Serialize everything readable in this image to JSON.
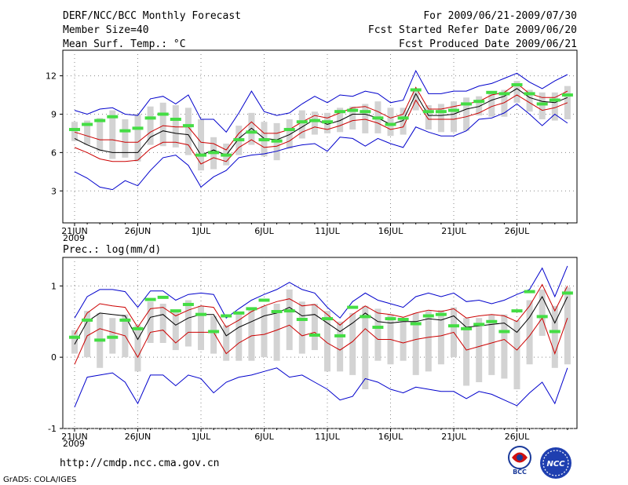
{
  "header": {
    "left": [
      "DERF/NCC/BCC Monthly Forecast",
      "Member Size=40",
      "Mean Surf. Temp.: °C"
    ],
    "right": [
      "For 2009/06/21-2009/07/30",
      "Fcst Started Refer Date 2009/06/20",
      "Fcst Produced Date 2009/06/21"
    ]
  },
  "footer": {
    "url": "http://cmdp.ncc.cma.gov.cn",
    "credit": "GrADS: COLA/IGES",
    "logo_left": "BCC",
    "logo_right": "NCC"
  },
  "colors": {
    "envelope": "#0000cc",
    "spread": "#cc0000",
    "mean": "#000000",
    "box": "#d3d3d3",
    "marker": "#44dd44",
    "grid": "#888888"
  },
  "chart_data": [
    {
      "type": "ensemble",
      "title": "Mean Surf. Temp.: °C",
      "ylim": [
        0.5,
        14
      ],
      "yticks": [
        3,
        6,
        9,
        12
      ],
      "xtick_labels": [
        "21JUN",
        "26JUN",
        "1JUL",
        "6JUL",
        "11JUL",
        "16JUL",
        "21JUL",
        "26JUL"
      ],
      "xtick_year": "2009",
      "days": 40,
      "max": [
        9.3,
        9.0,
        9.4,
        9.5,
        9.0,
        8.9,
        10.2,
        10.4,
        9.8,
        10.5,
        8.6,
        8.6,
        7.6,
        9.1,
        10.8,
        9.2,
        8.9,
        9.1,
        9.8,
        10.4,
        9.9,
        10.5,
        10.4,
        10.8,
        10.6,
        9.9,
        10.1,
        12.4,
        10.6,
        10.6,
        10.8,
        10.8,
        11.2,
        11.4,
        11.8,
        12.2,
        11.5,
        11.0,
        11.6,
        12.1
      ],
      "p_upper": [
        7.6,
        7.3,
        7.0,
        7.0,
        6.8,
        6.8,
        7.6,
        8.1,
        8.0,
        8.0,
        6.8,
        6.7,
        6.2,
        7.5,
        8.4,
        7.5,
        7.5,
        7.8,
        8.4,
        8.9,
        8.7,
        9.1,
        9.5,
        9.6,
        9.2,
        8.7,
        9.0,
        11.1,
        9.4,
        9.4,
        9.6,
        9.8,
        10.0,
        10.5,
        10.7,
        11.4,
        10.6,
        10.3,
        10.3,
        10.8
      ],
      "mean": [
        7.1,
        6.6,
        6.2,
        6.0,
        6.0,
        6.0,
        7.2,
        7.7,
        7.5,
        7.4,
        5.8,
        6.2,
        5.8,
        7.1,
        7.9,
        7.1,
        7.0,
        7.4,
        8.0,
        8.6,
        8.2,
        8.5,
        9.0,
        9.0,
        8.7,
        8.2,
        8.5,
        10.6,
        8.9,
        8.9,
        9.0,
        9.4,
        9.6,
        10.1,
        10.4,
        11.0,
        10.3,
        10.0,
        9.9,
        10.3
      ],
      "p_lower": [
        6.4,
        6.0,
        5.5,
        5.3,
        5.3,
        5.4,
        6.3,
        6.8,
        6.8,
        6.6,
        5.1,
        5.6,
        5.3,
        6.4,
        7.0,
        6.4,
        6.5,
        6.9,
        7.6,
        8.0,
        7.8,
        8.1,
        8.5,
        8.6,
        8.3,
        7.8,
        8.0,
        10.1,
        8.6,
        8.6,
        8.6,
        8.8,
        9.1,
        9.6,
        9.9,
        10.5,
        9.9,
        9.3,
        9.5,
        9.9
      ],
      "min": [
        4.5,
        4.0,
        3.3,
        3.1,
        3.8,
        3.4,
        4.6,
        5.6,
        5.8,
        5.0,
        3.3,
        4.1,
        4.6,
        5.6,
        5.8,
        5.9,
        6.1,
        6.4,
        6.6,
        6.7,
        6.1,
        7.2,
        7.1,
        6.5,
        7.1,
        6.7,
        6.4,
        8.0,
        7.6,
        7.3,
        7.3,
        7.7,
        8.6,
        8.7,
        9.1,
        9.8,
        9.0,
        8.1,
        9.0,
        8.3
      ],
      "box_high": [
        8.4,
        8.5,
        8.7,
        9.3,
        8.6,
        9.0,
        9.6,
        9.9,
        9.7,
        9.5,
        8.6,
        7.2,
        6.7,
        8.1,
        9.1,
        8.4,
        8.3,
        8.6,
        9.3,
        9.2,
        9.1,
        9.5,
        9.6,
        9.8,
        10.0,
        9.5,
        9.5,
        10.9,
        9.7,
        9.8,
        10.0,
        10.3,
        10.4,
        10.7,
        10.9,
        11.6,
        10.9,
        10.7,
        10.7,
        11.2
      ],
      "box_low": [
        6.9,
        6.6,
        6.1,
        5.5,
        5.6,
        5.3,
        6.6,
        6.5,
        6.4,
        5.8,
        4.6,
        4.7,
        5.0,
        5.8,
        6.6,
        5.7,
        5.4,
        6.3,
        7.1,
        7.4,
        7.5,
        7.6,
        7.8,
        7.5,
        7.5,
        7.3,
        7.4,
        9.3,
        7.8,
        7.6,
        7.6,
        7.7,
        8.9,
        8.8,
        8.8,
        9.9,
        9.2,
        8.6,
        8.5,
        8.6
      ],
      "markers": [
        7.8,
        8.2,
        8.5,
        8.8,
        7.7,
        7.9,
        8.7,
        9.0,
        8.6,
        8.1,
        5.8,
        6.0,
        5.8,
        7.0,
        7.6,
        7.0,
        6.9,
        7.8,
        8.4,
        8.5,
        8.4,
        9.2,
        9.3,
        9.2,
        8.7,
        8.2,
        8.7,
        10.9,
        9.2,
        9.2,
        9.3,
        9.8,
        10.0,
        10.7,
        10.6,
        11.3,
        10.6,
        9.8,
        10.1,
        10.5
      ]
    },
    {
      "type": "ensemble",
      "title": "Prec.: log(mm/d)",
      "ylim": [
        -1,
        1.4
      ],
      "yticks": [
        -1,
        0,
        1
      ],
      "xtick_labels": [
        "21JUN",
        "26JUN",
        "1JUL",
        "6JUL",
        "11JUL",
        "16JUL",
        "21JUL",
        "26JUL"
      ],
      "xtick_year": "2009",
      "days": 40,
      "max": [
        0.55,
        0.85,
        0.95,
        0.95,
        0.92,
        0.7,
        0.93,
        0.93,
        0.8,
        0.88,
        0.9,
        0.88,
        0.55,
        0.68,
        0.8,
        0.88,
        0.95,
        1.05,
        0.95,
        0.9,
        0.7,
        0.55,
        0.78,
        0.9,
        0.8,
        0.75,
        0.7,
        0.85,
        0.9,
        0.85,
        0.9,
        0.78,
        0.8,
        0.75,
        0.8,
        0.88,
        0.95,
        1.25,
        0.85,
        1.28
      ],
      "p_upper": [
        0.32,
        0.62,
        0.75,
        0.72,
        0.7,
        0.42,
        0.68,
        0.7,
        0.58,
        0.66,
        0.72,
        0.7,
        0.42,
        0.52,
        0.64,
        0.72,
        0.78,
        0.82,
        0.72,
        0.74,
        0.6,
        0.45,
        0.6,
        0.72,
        0.62,
        0.6,
        0.56,
        0.62,
        0.66,
        0.64,
        0.68,
        0.55,
        0.58,
        0.6,
        0.58,
        0.5,
        0.72,
        1.02,
        0.65,
        1.0
      ],
      "mean": [
        0.18,
        0.5,
        0.62,
        0.6,
        0.58,
        0.25,
        0.56,
        0.6,
        0.45,
        0.55,
        0.6,
        0.6,
        0.3,
        0.42,
        0.5,
        0.58,
        0.62,
        0.7,
        0.58,
        0.6,
        0.48,
        0.36,
        0.48,
        0.62,
        0.5,
        0.48,
        0.5,
        0.5,
        0.54,
        0.52,
        0.58,
        0.42,
        0.44,
        0.46,
        0.48,
        0.35,
        0.56,
        0.85,
        0.48,
        0.85
      ],
      "p_lower": [
        -0.1,
        0.3,
        0.4,
        0.35,
        0.3,
        0.0,
        0.35,
        0.38,
        0.2,
        0.35,
        0.35,
        0.35,
        0.05,
        0.2,
        0.3,
        0.32,
        0.38,
        0.45,
        0.3,
        0.35,
        0.2,
        0.1,
        0.22,
        0.4,
        0.25,
        0.25,
        0.2,
        0.25,
        0.28,
        0.3,
        0.35,
        0.1,
        0.15,
        0.2,
        0.25,
        0.1,
        0.3,
        0.55,
        0.05,
        0.55
      ],
      "min": [
        -0.7,
        -0.28,
        -0.25,
        -0.22,
        -0.35,
        -0.65,
        -0.25,
        -0.25,
        -0.4,
        -0.25,
        -0.3,
        -0.5,
        -0.35,
        -0.28,
        -0.25,
        -0.2,
        -0.15,
        -0.28,
        -0.25,
        -0.35,
        -0.45,
        -0.6,
        -0.55,
        -0.3,
        -0.35,
        -0.45,
        -0.5,
        -0.42,
        -0.45,
        -0.48,
        -0.48,
        -0.58,
        -0.48,
        -0.52,
        -0.6,
        -0.68,
        -0.5,
        -0.35,
        -0.65,
        -0.15
      ],
      "box_high": [
        0.38,
        0.65,
        0.62,
        0.55,
        0.6,
        0.45,
        0.78,
        0.75,
        0.65,
        0.8,
        0.72,
        0.58,
        0.45,
        0.6,
        0.7,
        0.72,
        0.75,
        0.95,
        0.78,
        0.75,
        0.65,
        0.5,
        0.62,
        0.72,
        0.68,
        0.6,
        0.55,
        0.62,
        0.65,
        0.66,
        0.7,
        0.55,
        0.55,
        0.6,
        0.6,
        0.52,
        0.8,
        0.95,
        0.72,
        0.98
      ],
      "box_low": [
        0.05,
        0.0,
        -0.15,
        0.05,
        0.0,
        -0.2,
        0.2,
        0.2,
        0.1,
        0.15,
        0.1,
        0.05,
        -0.05,
        -0.05,
        -0.05,
        0.0,
        -0.05,
        0.1,
        0.05,
        0.1,
        -0.2,
        -0.2,
        -0.25,
        -0.45,
        -0.05,
        -0.1,
        -0.05,
        -0.25,
        -0.2,
        -0.1,
        0.0,
        -0.4,
        -0.35,
        -0.25,
        -0.3,
        -0.45,
        -0.1,
        0.3,
        -0.15,
        -0.1
      ],
      "markers": [
        0.28,
        0.52,
        0.24,
        0.28,
        0.52,
        0.4,
        0.81,
        0.84,
        0.65,
        0.74,
        0.6,
        0.36,
        0.58,
        0.62,
        0.68,
        0.8,
        0.64,
        0.65,
        0.53,
        0.31,
        0.54,
        0.3,
        0.7,
        0.57,
        0.42,
        0.54,
        0.53,
        0.47,
        0.58,
        0.6,
        0.44,
        0.4,
        0.46,
        0.5,
        0.36,
        0.65,
        0.92,
        0.57,
        0.36,
        0.9
      ]
    }
  ]
}
